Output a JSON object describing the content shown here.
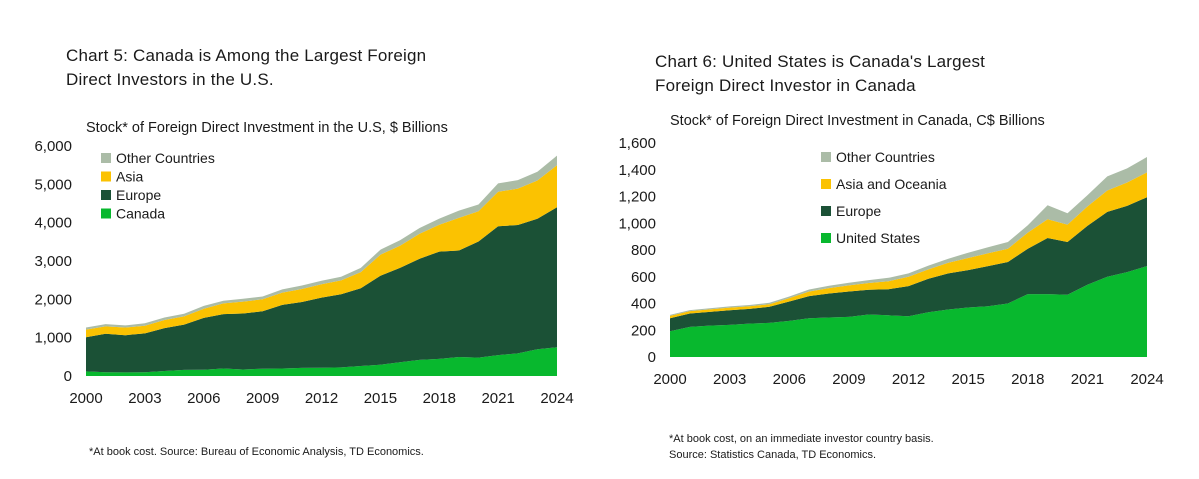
{
  "chart_data": [
    {
      "type": "area",
      "stacked": true,
      "title_lines": [
        "Chart 5: Canada is Among the Largest Foreign",
        "Direct Investors in the U.S."
      ],
      "subtitle": "Stock* of Foreign Direct Investment in the U.S, $ Billions",
      "xlabel": "",
      "ylabel": "",
      "x": [
        2000,
        2001,
        2002,
        2003,
        2004,
        2005,
        2006,
        2007,
        2008,
        2009,
        2010,
        2011,
        2012,
        2013,
        2014,
        2015,
        2016,
        2017,
        2018,
        2019,
        2020,
        2021,
        2022,
        2023,
        2024
      ],
      "x_ticks": [
        2000,
        2003,
        2006,
        2009,
        2012,
        2015,
        2018,
        2021,
        2024
      ],
      "x_tick_labels": [
        "2000",
        "2003",
        "2006",
        "2009",
        "2012",
        "2015",
        "2018",
        "2021",
        "2024"
      ],
      "ylim": [
        0,
        6000
      ],
      "y_ticks": [
        0,
        1000,
        2000,
        3000,
        4000,
        5000,
        6000
      ],
      "y_tick_labels": [
        "0",
        "1,000",
        "2,000",
        "3,000",
        "4,000",
        "5,000",
        "6,000"
      ],
      "legend_position": "top-left",
      "series": [
        {
          "name": "Canada",
          "color": "#08b82e",
          "values": [
            120,
            100,
            95,
            100,
            130,
            160,
            165,
            195,
            170,
            190,
            195,
            210,
            215,
            225,
            260,
            295,
            360,
            420,
            445,
            495,
            480,
            545,
            590,
            700,
            750
          ]
        },
        {
          "name": "Europe",
          "color": "#1b5136",
          "values": [
            890,
            1000,
            970,
            1010,
            1120,
            1180,
            1350,
            1420,
            1460,
            1500,
            1660,
            1720,
            1830,
            1910,
            2030,
            2320,
            2460,
            2640,
            2800,
            2780,
            3030,
            3360,
            3350,
            3400,
            3650
          ]
        },
        {
          "name": "Asia",
          "color": "#fbc201",
          "values": [
            200,
            195,
            200,
            200,
            210,
            215,
            240,
            280,
            310,
            310,
            320,
            340,
            350,
            360,
            420,
            550,
            580,
            650,
            700,
            850,
            790,
            900,
            950,
            1000,
            1100
          ]
        },
        {
          "name": "Other Countries",
          "color": "#abbca7",
          "values": [
            55,
            60,
            55,
            65,
            65,
            70,
            75,
            70,
            75,
            75,
            85,
            90,
            90,
            95,
            110,
            130,
            140,
            150,
            160,
            190,
            175,
            220,
            220,
            230,
            250
          ]
        }
      ],
      "legend_order": [
        "Other Countries",
        "Asia",
        "Europe",
        "Canada"
      ],
      "note_lines": [
        "*At book cost. Source: Bureau of Economic Analysis, TD Economics."
      ]
    },
    {
      "type": "area",
      "stacked": true,
      "title_lines": [
        "Chart 6: United States is Canada's Largest",
        "Foreign Direct Investor in Canada"
      ],
      "subtitle": "Stock* of Foreign Direct Investment in Canada, C$ Billions",
      "xlabel": "",
      "ylabel": "",
      "x": [
        2000,
        2001,
        2002,
        2003,
        2004,
        2005,
        2006,
        2007,
        2008,
        2009,
        2010,
        2011,
        2012,
        2013,
        2014,
        2015,
        2016,
        2017,
        2018,
        2019,
        2020,
        2021,
        2022,
        2023,
        2024
      ],
      "x_ticks": [
        2000,
        2003,
        2006,
        2009,
        2012,
        2015,
        2018,
        2021,
        2024
      ],
      "x_tick_labels": [
        "2000",
        "2003",
        "2006",
        "2009",
        "2012",
        "2015",
        "2018",
        "2021",
        "2024"
      ],
      "ylim": [
        0,
        1600
      ],
      "y_ticks": [
        0,
        200,
        400,
        600,
        800,
        1000,
        1200,
        1400,
        1600
      ],
      "y_tick_labels": [
        "0",
        "200",
        "400",
        "600",
        "800",
        "1,000",
        "1,200",
        "1,400",
        "1,600"
      ],
      "legend_position": "top-center",
      "series": [
        {
          "name": "United States",
          "color": "#08b82e",
          "values": [
            193,
            225,
            235,
            240,
            250,
            255,
            270,
            290,
            295,
            300,
            318,
            312,
            305,
            335,
            355,
            370,
            380,
            400,
            470,
            470,
            465,
            540,
            600,
            635,
            680
          ]
        },
        {
          "name": "Europe",
          "color": "#1b5136",
          "values": [
            97,
            100,
            102,
            110,
            110,
            120,
            145,
            165,
            180,
            190,
            185,
            195,
            225,
            250,
            270,
            280,
            300,
            310,
            340,
            420,
            395,
            440,
            485,
            495,
            515
          ]
        },
        {
          "name": "Asia and Oceania",
          "color": "#fbc201",
          "values": [
            17,
            18,
            19,
            19,
            19,
            20,
            25,
            35,
            40,
            45,
            50,
            60,
            70,
            70,
            80,
            90,
            95,
            100,
            120,
            140,
            130,
            145,
            160,
            175,
            185
          ]
        },
        {
          "name": "Other Countries",
          "color": "#abbca7",
          "values": [
            8,
            8,
            9,
            9,
            10,
            10,
            12,
            15,
            18,
            20,
            22,
            25,
            25,
            28,
            30,
            40,
            45,
            50,
            55,
            105,
            85,
            85,
            105,
            105,
            115
          ]
        }
      ],
      "legend_order": [
        "Other Countries",
        "Asia and Oceania",
        "Europe",
        "United States"
      ],
      "note_lines": [
        "*At book cost, on an immediate investor country basis.",
        "Source: Statistics Canada, TD Economics."
      ]
    }
  ]
}
